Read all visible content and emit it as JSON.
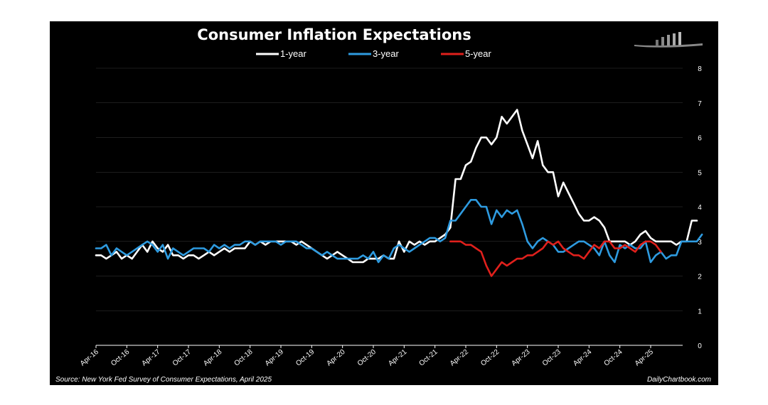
{
  "chart_data": {
    "type": "line",
    "title": "Consumer Inflation Expectations",
    "source": "Source: New York Fed Survey of Consumer Expectations, April 2025",
    "credit": "DailyChartbook.com",
    "xlabel": "",
    "ylabel": "",
    "ylim": [
      0,
      8
    ],
    "y_ticks": [
      0,
      1,
      2,
      3,
      4,
      5,
      6,
      7,
      8
    ],
    "x_ticks": [
      "Apr-16",
      "Oct-16",
      "Apr-17",
      "Oct-17",
      "Apr-18",
      "Oct-18",
      "Apr-19",
      "Oct-19",
      "Apr-20",
      "Oct-20",
      "Apr-21",
      "Oct-21",
      "Apr-22",
      "Oct-22",
      "Apr-23",
      "Oct-23",
      "Apr-24",
      "Oct-24",
      "Apr-25"
    ],
    "x_start": "2016-04",
    "x_end": "2025-04",
    "grid": true,
    "legend_position": "top-center",
    "colors": {
      "background": "#000000",
      "grid": "#3a3a3a",
      "text": "#ffffff"
    },
    "series": [
      {
        "name": "1-year",
        "color": "#ffffff",
        "start": "2016-04",
        "values": [
          2.6,
          2.6,
          2.5,
          2.6,
          2.7,
          2.5,
          2.6,
          2.5,
          2.7,
          2.9,
          2.7,
          3.0,
          2.8,
          2.7,
          2.9,
          2.6,
          2.6,
          2.5,
          2.6,
          2.6,
          2.5,
          2.6,
          2.7,
          2.6,
          2.7,
          2.8,
          2.7,
          2.8,
          2.8,
          2.8,
          3.0,
          2.9,
          3.0,
          2.9,
          3.0,
          3.0,
          3.0,
          3.0,
          3.0,
          2.9,
          3.0,
          2.9,
          2.8,
          2.7,
          2.6,
          2.5,
          2.6,
          2.7,
          2.6,
          2.5,
          2.4,
          2.4,
          2.4,
          2.5,
          2.5,
          2.5,
          2.6,
          2.5,
          2.5,
          3.0,
          2.7,
          3.0,
          2.9,
          3.0,
          2.9,
          3.0,
          3.0,
          3.1,
          3.2,
          3.4,
          4.8,
          4.8,
          5.2,
          5.3,
          5.7,
          6.0,
          6.0,
          5.8,
          6.0,
          6.6,
          6.4,
          6.6,
          6.8,
          6.2,
          5.8,
          5.4,
          5.9,
          5.2,
          5.0,
          5.0,
          4.3,
          4.7,
          4.4,
          4.1,
          3.8,
          3.6,
          3.6,
          3.7,
          3.6,
          3.4,
          3.0,
          3.0,
          3.0,
          3.0,
          2.9,
          3.0,
          3.2,
          3.3,
          3.1,
          3.0,
          3.0,
          3.0,
          3.0,
          2.9,
          3.0,
          3.0,
          3.6,
          3.6
        ]
      },
      {
        "name": "3-year",
        "color": "#2e9be0",
        "start": "2016-04",
        "values": [
          2.8,
          2.8,
          2.9,
          2.6,
          2.8,
          2.7,
          2.6,
          2.7,
          2.8,
          2.9,
          3.0,
          2.9,
          2.7,
          2.9,
          2.5,
          2.8,
          2.7,
          2.6,
          2.7,
          2.8,
          2.8,
          2.8,
          2.7,
          2.9,
          2.8,
          2.9,
          2.8,
          2.9,
          2.9,
          3.0,
          3.0,
          2.9,
          3.0,
          3.0,
          3.0,
          3.0,
          2.9,
          3.0,
          3.0,
          3.0,
          2.9,
          2.8,
          2.8,
          2.7,
          2.6,
          2.7,
          2.6,
          2.5,
          2.5,
          2.5,
          2.5,
          2.5,
          2.6,
          2.5,
          2.7,
          2.4,
          2.6,
          2.5,
          2.8,
          2.9,
          2.8,
          2.7,
          2.8,
          2.9,
          3.0,
          3.1,
          3.1,
          3.0,
          3.1,
          3.6,
          3.6,
          3.8,
          4.0,
          4.2,
          4.2,
          4.0,
          4.0,
          3.5,
          3.9,
          3.7,
          3.9,
          3.8,
          3.9,
          3.5,
          3.0,
          2.8,
          3.0,
          3.1,
          3.0,
          2.9,
          2.7,
          2.7,
          2.8,
          2.9,
          3.0,
          3.0,
          2.9,
          2.8,
          2.6,
          3.0,
          2.6,
          2.4,
          2.9,
          2.8,
          2.9,
          2.8,
          2.8,
          3.0,
          2.4,
          2.6,
          2.7,
          2.5,
          2.6,
          2.6,
          3.0,
          3.0,
          3.0,
          3.0,
          3.2
        ]
      },
      {
        "name": "5-year",
        "color": "#e0201c",
        "start": "2022-01",
        "values": [
          3.0,
          3.0,
          3.0,
          2.9,
          2.9,
          2.8,
          2.7,
          2.3,
          2.0,
          2.2,
          2.4,
          2.3,
          2.4,
          2.5,
          2.5,
          2.6,
          2.6,
          2.7,
          2.8,
          3.0,
          2.9,
          3.0,
          2.8,
          2.7,
          2.6,
          2.6,
          2.5,
          2.7,
          2.9,
          2.8,
          3.0,
          3.0,
          2.8,
          2.8,
          2.9,
          2.8,
          2.7,
          2.9,
          3.0,
          3.0,
          2.9,
          2.7
        ]
      }
    ]
  }
}
